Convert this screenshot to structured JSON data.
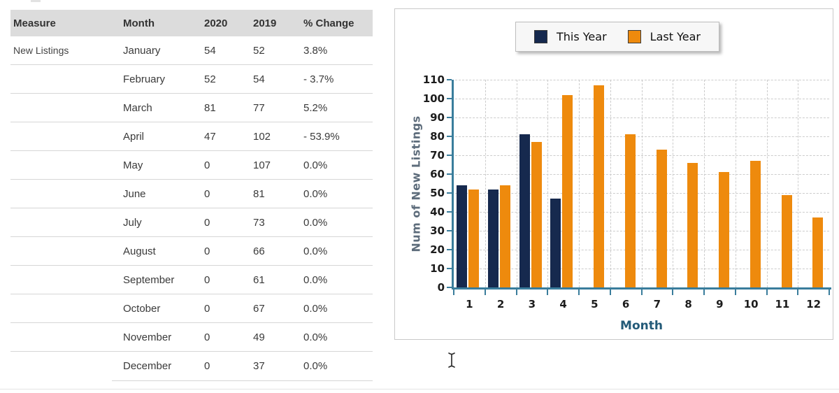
{
  "table": {
    "headers": [
      "Measure",
      "Month",
      "2020",
      "2019",
      "% Change"
    ],
    "measure": "New Listings",
    "rows": [
      {
        "month": "January",
        "y2020": "54",
        "y2019": "52",
        "change": "3.8%"
      },
      {
        "month": "February",
        "y2020": "52",
        "y2019": "54",
        "change": "- 3.7%"
      },
      {
        "month": "March",
        "y2020": "81",
        "y2019": "77",
        "change": "5.2%"
      },
      {
        "month": "April",
        "y2020": "47",
        "y2019": "102",
        "change": "- 53.9%"
      },
      {
        "month": "May",
        "y2020": "0",
        "y2019": "107",
        "change": "0.0%"
      },
      {
        "month": "June",
        "y2020": "0",
        "y2019": "81",
        "change": "0.0%"
      },
      {
        "month": "July",
        "y2020": "0",
        "y2019": "73",
        "change": "0.0%"
      },
      {
        "month": "August",
        "y2020": "0",
        "y2019": "66",
        "change": "0.0%"
      },
      {
        "month": "September",
        "y2020": "0",
        "y2019": "61",
        "change": "0.0%"
      },
      {
        "month": "October",
        "y2020": "0",
        "y2019": "67",
        "change": "0.0%"
      },
      {
        "month": "November",
        "y2020": "0",
        "y2019": "49",
        "change": "0.0%"
      },
      {
        "month": "December",
        "y2020": "0",
        "y2019": "37",
        "change": "0.0%"
      }
    ]
  },
  "chart_data": {
    "type": "bar",
    "categories": [
      "1",
      "2",
      "3",
      "4",
      "5",
      "6",
      "7",
      "8",
      "9",
      "10",
      "11",
      "12"
    ],
    "series": [
      {
        "name": "This Year",
        "color": "#16294e",
        "values": [
          54,
          52,
          81,
          47,
          0,
          0,
          0,
          0,
          0,
          0,
          0,
          0
        ]
      },
      {
        "name": "Last Year",
        "color": "#ee8a0d",
        "values": [
          52,
          54,
          77,
          102,
          107,
          81,
          73,
          66,
          61,
          67,
          49,
          37
        ]
      }
    ],
    "xlabel": "Month",
    "ylabel": "Num of New Listings",
    "ylim": [
      0,
      110
    ],
    "ytick_step": 10,
    "grid": true,
    "legend_position": "top-center",
    "axis_color": "#3a7d9c",
    "grid_color": "#cccccc"
  }
}
